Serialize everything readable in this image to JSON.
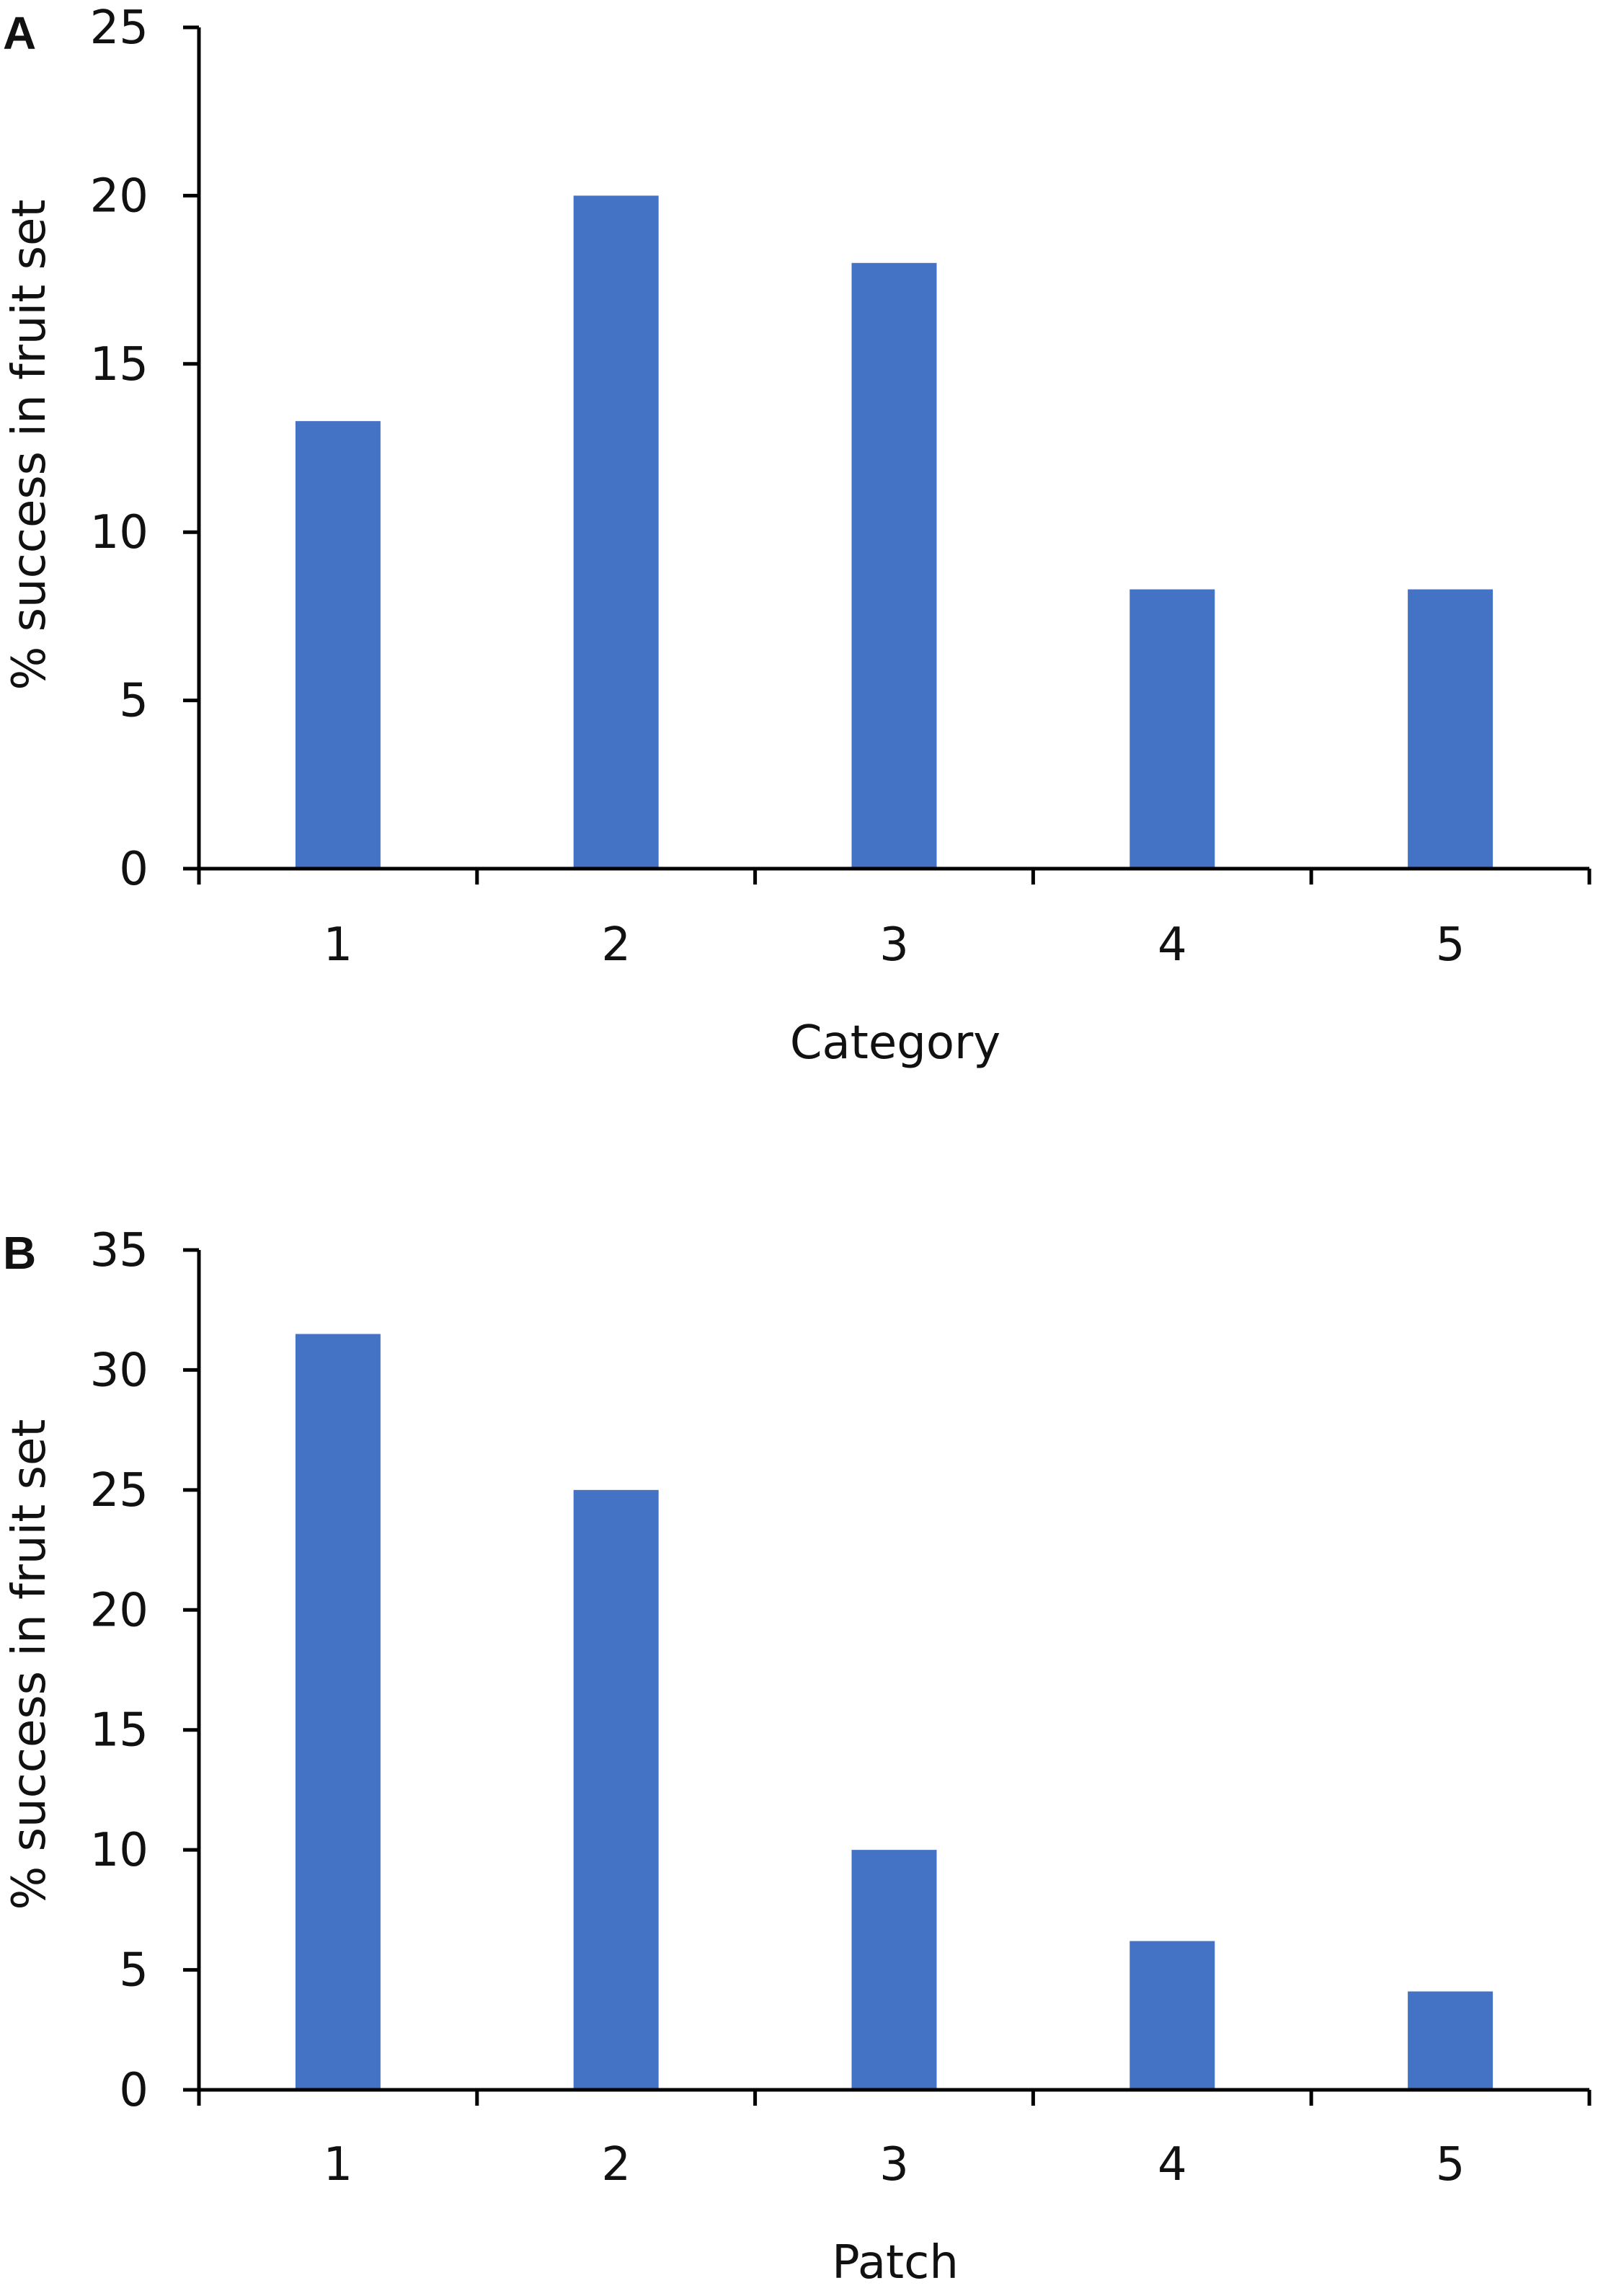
{
  "chart_data": [
    {
      "type": "bar",
      "panel": "A",
      "categories": [
        "1",
        "2",
        "3",
        "4",
        "5"
      ],
      "values": [
        13.3,
        20,
        18,
        8.3,
        8.3
      ],
      "xlabel": "Category",
      "ylabel": "% success in fruit set",
      "ylim": [
        0,
        25
      ],
      "yticks": [
        0,
        5,
        10,
        15,
        20,
        25
      ],
      "grid": false,
      "color": "#4472C4"
    },
    {
      "type": "bar",
      "panel": "B",
      "categories": [
        "1",
        "2",
        "3",
        "4",
        "5"
      ],
      "values": [
        31.5,
        25,
        10,
        6.2,
        4.1
      ],
      "xlabel": "Patch",
      "ylabel": "% success in fruit set",
      "ylim": [
        0,
        35
      ],
      "yticks": [
        0,
        5,
        10,
        15,
        20,
        25,
        30,
        35
      ],
      "grid": false,
      "color": "#4472C4"
    }
  ]
}
